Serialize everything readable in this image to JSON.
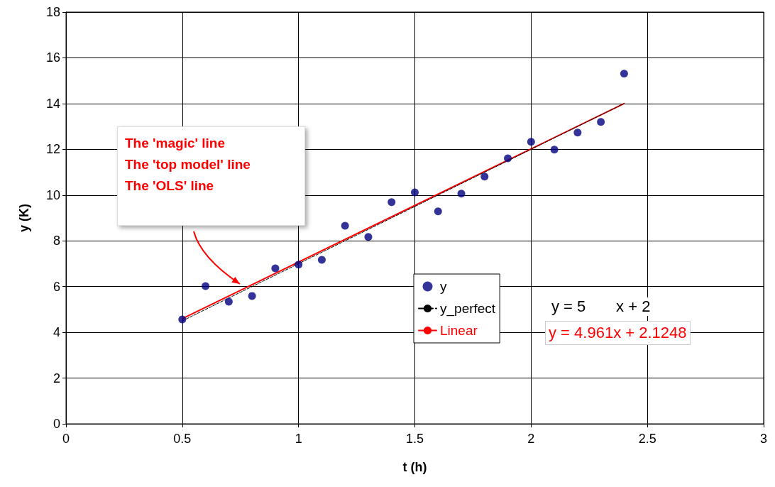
{
  "chart_data": {
    "type": "scatter",
    "xlabel": "t (h)",
    "ylabel": "y (K)",
    "xlim": [
      0,
      3
    ],
    "xticks": [
      0,
      0.5,
      1,
      1.5,
      2,
      2.5,
      3
    ],
    "ylim": [
      0,
      18
    ],
    "yticks": [
      0,
      2,
      4,
      6,
      8,
      10,
      12,
      14,
      16,
      18
    ],
    "grid": true,
    "legend": "bottom right",
    "series": [
      {
        "name": "y",
        "color": "#000080",
        "marker": "circle",
        "x": [
          0.5,
          0.6,
          0.7,
          0.8,
          0.9,
          1.0,
          1.1,
          1.2,
          1.3,
          1.4,
          1.5,
          1.6,
          1.7,
          1.8,
          1.9,
          2.0,
          2.1,
          2.2,
          2.3,
          2.4
        ],
        "values": [
          4.56,
          6.02,
          5.34,
          5.59,
          6.8,
          6.96,
          7.17,
          8.66,
          8.17,
          9.69,
          10.12,
          9.29,
          10.06,
          10.81,
          11.61,
          12.33,
          11.99,
          12.73,
          13.2,
          15.31
        ]
      },
      {
        "name": "y_perfect",
        "type": "line",
        "color": "#000000",
        "marker": "none",
        "line_style": "dashed",
        "x": [
          0.5,
          2.4
        ],
        "values": [
          4.5,
          14
        ]
      },
      {
        "name": "Linear",
        "type": "line",
        "color": "#ff0000",
        "marker": "none",
        "line_style": "solid",
        "x": [
          0.5,
          2.4
        ],
        "values": [
          4.6,
          14.0
        ]
      }
    ],
    "annotations": [
      "The 'magic' line\nThe 'top model' line\nThe 'OLS' line",
      "y = 5       x + 2",
      "y = 4.961x + 2.1248"
    ]
  }
}
